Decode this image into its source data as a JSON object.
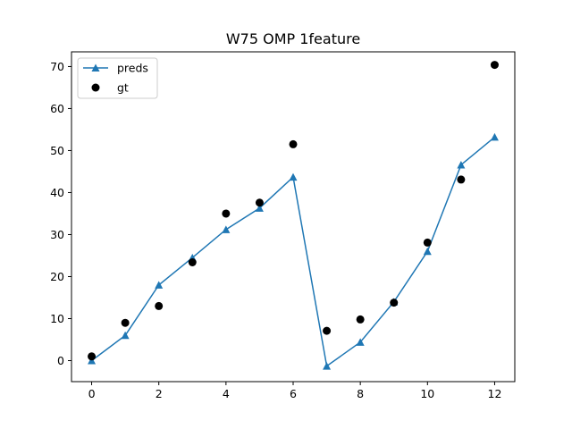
{
  "chart_data": {
    "type": "line",
    "title": "W75 OMP 1feature",
    "xlabel": "",
    "ylabel": "",
    "xlim": [
      -0.6,
      12.6
    ],
    "ylim": [
      -5,
      73.5
    ],
    "xticks": [
      0,
      2,
      4,
      6,
      8,
      10,
      12
    ],
    "yticks": [
      0,
      10,
      20,
      30,
      40,
      50,
      60,
      70
    ],
    "grid": false,
    "legend_position": "top-left",
    "series": [
      {
        "name": "preds",
        "kind": "line-with-triangle-markers",
        "color": "#1f77b4",
        "x": [
          0,
          1,
          2,
          3,
          4,
          5,
          6,
          7,
          8,
          9,
          10,
          11,
          12
        ],
        "values": [
          0,
          6,
          18,
          24.5,
          31.2,
          36.3,
          43.7,
          -1.3,
          4.4,
          14,
          26,
          46.6,
          53.2
        ]
      },
      {
        "name": "gt",
        "kind": "scatter",
        "color": "#000000",
        "x": [
          0,
          1,
          2,
          3,
          4,
          5,
          6,
          7,
          8,
          9,
          10,
          11,
          12
        ],
        "values": [
          1,
          9,
          13,
          23.4,
          35,
          37.6,
          51.5,
          7.1,
          9.8,
          13.8,
          28.1,
          43.1,
          70.4
        ]
      }
    ]
  }
}
